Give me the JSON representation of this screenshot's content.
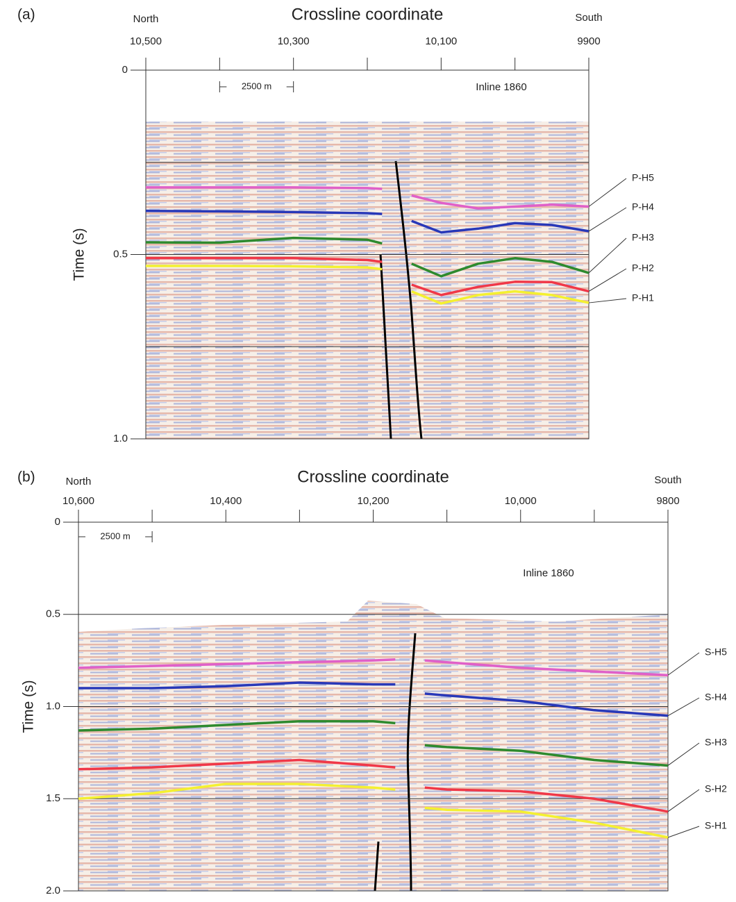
{
  "chart_data": [
    {
      "type": "line",
      "panel": "(a)",
      "title": "Crossline coordinate",
      "left_label": "North",
      "right_label": "South",
      "y_label": "Time (s)",
      "annotation": "Inline 1860",
      "scale_bar": "2500 m",
      "x": [
        10500,
        10400,
        10300,
        10200,
        10180,
        10160,
        10140,
        10100,
        10050,
        10000,
        9950,
        9900
      ],
      "xlim": [
        10500,
        9900
      ],
      "xticks": [
        {
          "value": 10500,
          "label": "10,500"
        },
        {
          "value": 10300,
          "label": "10,300"
        },
        {
          "value": 10100,
          "label": "10,100"
        },
        9900
      ],
      "xminorticks": [
        10400,
        10200,
        10000
      ],
      "ylim": [
        0,
        1
      ],
      "yticks": [
        0,
        0.5,
        {
          "value": 1,
          "label": "1.0"
        }
      ],
      "ygrid": [
        0.25,
        0.5,
        0.75
      ],
      "series": [
        {
          "name": "P-H5",
          "color": "#e060c8",
          "values": [
            0.318,
            0.318,
            0.318,
            0.32,
            0.322,
            null,
            0.34,
            0.36,
            0.375,
            0.37,
            0.365,
            0.37
          ]
        },
        {
          "name": "P-H4",
          "color": "#2838b8",
          "values": [
            0.382,
            0.383,
            0.385,
            0.388,
            0.39,
            null,
            0.409,
            0.44,
            0.43,
            0.415,
            0.42,
            0.437
          ]
        },
        {
          "name": "P-H3",
          "color": "#2e8a2e",
          "values": [
            0.467,
            0.468,
            0.455,
            0.46,
            0.47,
            null,
            0.525,
            0.559,
            0.525,
            0.51,
            0.52,
            0.55
          ]
        },
        {
          "name": "P-H2",
          "color": "#f03848",
          "values": [
            0.51,
            0.51,
            0.51,
            0.515,
            0.52,
            null,
            0.582,
            0.61,
            0.588,
            0.574,
            0.575,
            0.6
          ]
        },
        {
          "name": "P-H1",
          "color": "#f4f030",
          "values": [
            0.531,
            0.531,
            0.532,
            0.535,
            0.54,
            null,
            0.6,
            0.633,
            0.61,
            0.6,
            0.61,
            0.631
          ]
        }
      ]
    },
    {
      "type": "line",
      "panel": "(b)",
      "title": "Crossline coordinate",
      "left_label": "North",
      "right_label": "South",
      "y_label": "Time (s)",
      "annotation": "Inline 1860",
      "scale_bar": "2500 m",
      "x": [
        10600,
        10500,
        10400,
        10300,
        10200,
        10170,
        10150,
        10130,
        10100,
        10000,
        9900,
        9800
      ],
      "xlim": [
        10600,
        9800
      ],
      "xticks": [
        {
          "value": 10600,
          "label": "10,600"
        },
        {
          "value": 10400,
          "label": "10,400"
        },
        {
          "value": 10200,
          "label": "10,200"
        },
        {
          "value": 10000,
          "label": "10,000"
        },
        9800
      ],
      "xminorticks": [
        10500,
        10300,
        10100,
        9900
      ],
      "ylim": [
        0,
        2
      ],
      "yticks": [
        0,
        0.5,
        {
          "value": 1,
          "label": "1.0"
        },
        1.5,
        {
          "value": 2,
          "label": "2.0"
        }
      ],
      "ygrid": [
        0.5,
        1,
        1.5
      ],
      "series": [
        {
          "name": "S-H5",
          "color": "#e060c8",
          "values": [
            0.79,
            0.78,
            0.77,
            0.76,
            0.75,
            0.745,
            null,
            0.75,
            0.76,
            0.79,
            0.81,
            0.83
          ]
        },
        {
          "name": "S-H4",
          "color": "#2838b8",
          "values": [
            0.9,
            0.9,
            0.89,
            0.87,
            0.88,
            0.88,
            null,
            0.93,
            0.94,
            0.97,
            1.02,
            1.05
          ]
        },
        {
          "name": "S-H3",
          "color": "#2e8a2e",
          "values": [
            1.13,
            1.12,
            1.1,
            1.08,
            1.08,
            1.09,
            null,
            1.21,
            1.22,
            1.24,
            1.29,
            1.32
          ]
        },
        {
          "name": "S-H2",
          "color": "#f03848",
          "values": [
            1.34,
            1.33,
            1.31,
            1.29,
            1.32,
            1.33,
            null,
            1.44,
            1.45,
            1.46,
            1.5,
            1.57
          ]
        },
        {
          "name": "S-H1",
          "color": "#f4f030",
          "values": [
            1.5,
            1.47,
            1.42,
            1.42,
            1.44,
            1.45,
            null,
            1.55,
            1.56,
            1.57,
            1.63,
            1.71
          ]
        }
      ]
    }
  ]
}
